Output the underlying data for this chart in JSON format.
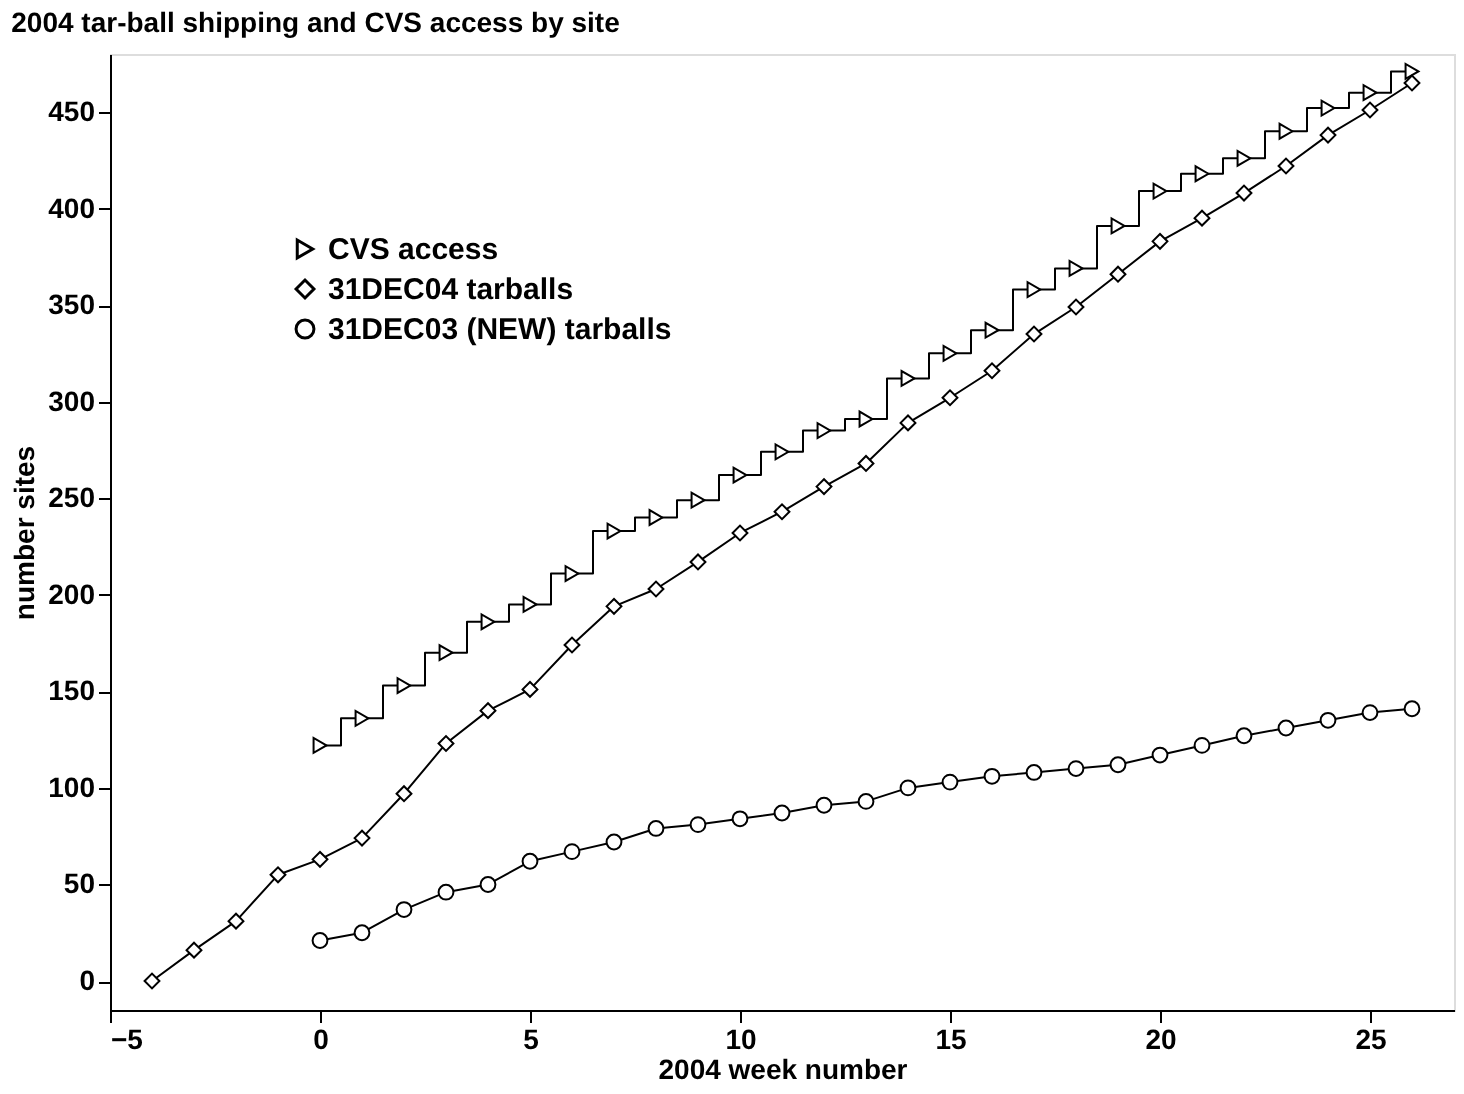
{
  "chart_data": {
    "type": "line",
    "title": "2004 tar-ball shipping and CVS access by site",
    "xlabel": "2004 week number",
    "ylabel": "number sites",
    "xlim": [
      -5,
      27
    ],
    "xticks": [
      -5,
      0,
      5,
      10,
      15,
      20,
      25
    ],
    "ylim": [
      -15,
      480
    ],
    "yticks": [
      0,
      50,
      100,
      150,
      200,
      250,
      300,
      350,
      400,
      450
    ],
    "grid": false,
    "legend": "top left",
    "line_style": "solid",
    "series": [
      {
        "name": "CVS access",
        "type": "step",
        "marker": "triangle",
        "color": "#000000",
        "x": [
          0,
          1,
          2,
          3,
          4,
          5,
          6,
          7,
          8,
          9,
          10,
          11,
          12,
          13,
          14,
          15,
          16,
          17,
          18,
          19,
          20,
          21,
          22,
          23,
          24,
          25,
          26
        ],
        "values": [
          122,
          136,
          153,
          170,
          186,
          195,
          211,
          233,
          240,
          249,
          262,
          274,
          285,
          291,
          312,
          325,
          337,
          358,
          369,
          391,
          409,
          418,
          426,
          440,
          452,
          460,
          471
        ]
      },
      {
        "name": "31DEC04 tarballs",
        "marker": "diamond",
        "color": "#000000",
        "x": [
          -4,
          -3,
          -2,
          -1,
          0,
          1,
          2,
          3,
          4,
          5,
          6,
          7,
          8,
          9,
          10,
          11,
          12,
          13,
          14,
          15,
          16,
          17,
          18,
          19,
          20,
          21,
          22,
          23,
          24,
          25,
          26
        ],
        "values": [
          0,
          16,
          31,
          55,
          63,
          74,
          97,
          123,
          140,
          151,
          174,
          194,
          203,
          217,
          232,
          243,
          256,
          268,
          289,
          302,
          316,
          335,
          349,
          366,
          383,
          395,
          408,
          422,
          438,
          451,
          465
        ]
      },
      {
        "name": "31DEC03 (NEW) tarballs",
        "marker": "circle",
        "color": "#000000",
        "x": [
          0,
          1,
          2,
          3,
          4,
          5,
          6,
          7,
          8,
          9,
          10,
          11,
          12,
          13,
          14,
          15,
          16,
          17,
          18,
          19,
          20,
          21,
          22,
          23,
          24,
          25,
          26
        ],
        "values": [
          21,
          25,
          37,
          46,
          50,
          62,
          67,
          72,
          79,
          81,
          84,
          87,
          91,
          93,
          100,
          103,
          106,
          108,
          110,
          112,
          117,
          122,
          127,
          131,
          135,
          139,
          141
        ]
      }
    ]
  }
}
